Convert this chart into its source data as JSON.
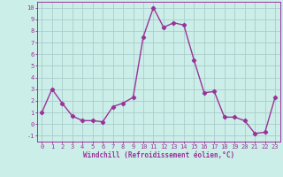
{
  "x": [
    0,
    1,
    2,
    3,
    4,
    5,
    6,
    7,
    8,
    9,
    10,
    11,
    12,
    13,
    14,
    15,
    16,
    17,
    18,
    19,
    20,
    21,
    22,
    23
  ],
  "y": [
    1,
    3,
    1.8,
    0.7,
    0.3,
    0.3,
    0.2,
    1.5,
    1.8,
    2.3,
    7.5,
    10,
    8.3,
    8.7,
    8.5,
    5.5,
    2.7,
    2.8,
    0.6,
    0.6,
    0.3,
    -0.8,
    -0.7,
    2.3
  ],
  "line_color": "#993399",
  "marker": "D",
  "marker_size": 2.2,
  "background_color": "#cceee8",
  "grid_color": "#aacccc",
  "xlabel": "Windchill (Refroidissement éolien,°C)",
  "xlabel_color": "#993399",
  "tick_color": "#993399",
  "spine_color": "#993399",
  "ylim": [
    -1.5,
    10.5
  ],
  "xlim": [
    -0.5,
    23.5
  ],
  "yticks": [
    -1,
    0,
    1,
    2,
    3,
    4,
    5,
    6,
    7,
    8,
    9,
    10
  ],
  "xticks": [
    0,
    1,
    2,
    3,
    4,
    5,
    6,
    7,
    8,
    9,
    10,
    11,
    12,
    13,
    14,
    15,
    16,
    17,
    18,
    19,
    20,
    21,
    22,
    23
  ],
  "tick_fontsize": 5.0,
  "xlabel_fontsize": 5.5,
  "linewidth": 1.0
}
